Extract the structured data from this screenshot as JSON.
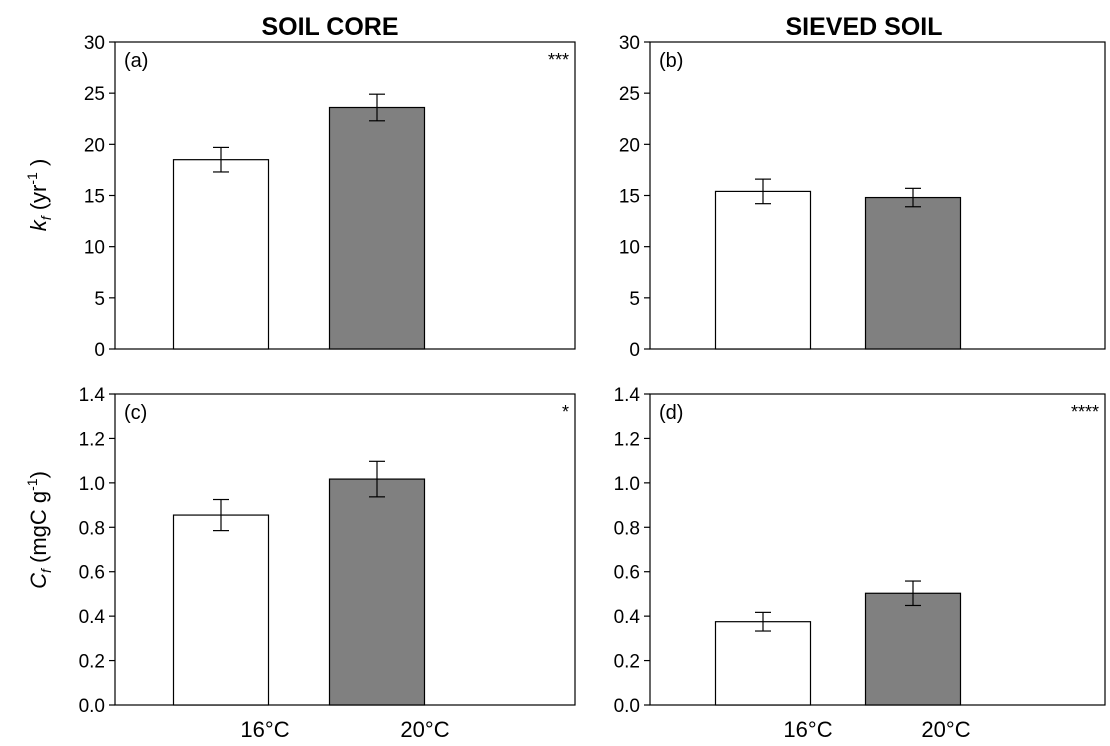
{
  "column_titles": [
    "SOIL CORE",
    "SIEVED SOIL"
  ],
  "categories": [
    "16°C",
    "20°C"
  ],
  "colors": {
    "16°C": "#ffffff",
    "20°C": "#808080",
    "axis": "#000000"
  },
  "ylabels": {
    "kf": {
      "symbol": "k",
      "sub": "f",
      "unit_open": " (yr",
      "sup": "-1",
      "unit_close": " )"
    },
    "cf": {
      "symbol": "C",
      "sub": "f",
      "unit_open": " (mgC g",
      "sup": "-1",
      "unit_close": ")"
    }
  },
  "chart_data": [
    {
      "type": "bar",
      "panel": "(a)",
      "significance": "***",
      "column": "SOIL CORE",
      "categories": [
        "16°C",
        "20°C"
      ],
      "values": [
        18.5,
        23.6
      ],
      "errors": [
        1.2,
        1.3
      ],
      "ylim": [
        0,
        30
      ],
      "yticks": [
        "0",
        "5",
        "10",
        "15",
        "20",
        "25",
        "30"
      ]
    },
    {
      "type": "bar",
      "panel": "(b)",
      "significance": "",
      "column": "SIEVED SOIL",
      "categories": [
        "16°C",
        "20°C"
      ],
      "values": [
        15.4,
        14.8
      ],
      "errors": [
        1.2,
        0.9
      ],
      "ylim": [
        0,
        30
      ],
      "yticks": [
        "0",
        "5",
        "10",
        "15",
        "20",
        "25",
        "30"
      ]
    },
    {
      "type": "bar",
      "panel": "(c)",
      "significance": "*",
      "column": "SOIL CORE",
      "categories": [
        "16°C",
        "20°C"
      ],
      "values": [
        0.855,
        1.017
      ],
      "errors": [
        0.07,
        0.08
      ],
      "ylim": [
        0,
        1.4
      ],
      "yticks": [
        "0.0",
        "0.2",
        "0.4",
        "0.6",
        "0.8",
        "1.0",
        "1.2",
        "1.4"
      ]
    },
    {
      "type": "bar",
      "panel": "(d)",
      "significance": "****",
      "column": "SIEVED SOIL",
      "categories": [
        "16°C",
        "20°C"
      ],
      "values": [
        0.375,
        0.503
      ],
      "errors": [
        0.042,
        0.055
      ],
      "ylim": [
        0,
        1.4
      ],
      "yticks": [
        "0.0",
        "0.2",
        "0.4",
        "0.6",
        "0.8",
        "1.0",
        "1.2",
        "1.4"
      ]
    }
  ]
}
